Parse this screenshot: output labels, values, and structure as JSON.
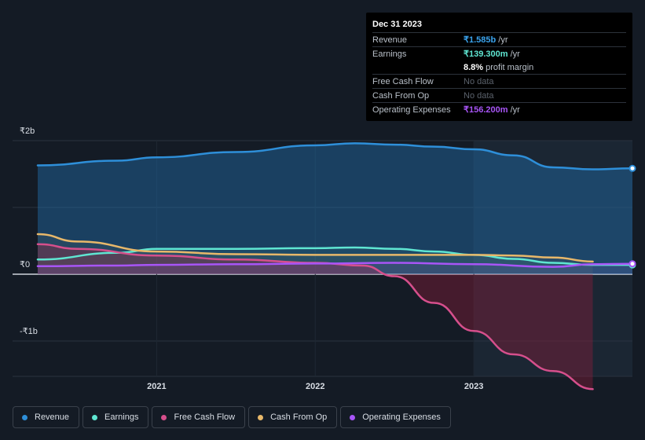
{
  "tooltip": {
    "date": "Dec 31 2023",
    "rows": [
      {
        "label": "Revenue",
        "value": "₹1.585b",
        "unit": " /yr",
        "color": "#3ba4ee"
      },
      {
        "label": "Earnings",
        "value": "₹139.300m",
        "unit": " /yr",
        "color": "#5fe6d2"
      },
      {
        "label": "",
        "value": "8.8%",
        "unit": " profit margin",
        "color": "#ffffff"
      },
      {
        "label": "Free Cash Flow",
        "value": "No data",
        "unit": "",
        "color": "#5b626c"
      },
      {
        "label": "Cash From Op",
        "value": "No data",
        "unit": "",
        "color": "#5b626c"
      },
      {
        "label": "Operating Expenses",
        "value": "₹156.200m",
        "unit": " /yr",
        "color": "#a855f7"
      }
    ]
  },
  "legend": [
    {
      "label": "Revenue",
      "color": "#2e8fd9"
    },
    {
      "label": "Earnings",
      "color": "#5fe6d2"
    },
    {
      "label": "Free Cash Flow",
      "color": "#d64f8c"
    },
    {
      "label": "Cash From Op",
      "color": "#e8b86a"
    },
    {
      "label": "Operating Expenses",
      "color": "#a855f7"
    }
  ],
  "chart_data": {
    "type": "line",
    "y_tick_labels": [
      "₹2b",
      "₹0",
      "-₹1b"
    ],
    "x_tick_labels": [
      "2021",
      "2022",
      "2023"
    ],
    "ylim": [
      -1.0,
      2.0
    ],
    "xlim": [
      2020.25,
      2024.0
    ],
    "grid": true,
    "legend_position": "bottom",
    "series": [
      {
        "name": "Revenue",
        "color": "#2e8fd9",
        "x": [
          2020.25,
          2020.75,
          2021.0,
          2021.5,
          2022.0,
          2022.25,
          2022.5,
          2022.75,
          2023.0,
          2023.25,
          2023.5,
          2023.75,
          2024.0
        ],
        "y": [
          1.63,
          1.7,
          1.75,
          1.83,
          1.93,
          1.96,
          1.94,
          1.91,
          1.87,
          1.78,
          1.6,
          1.57,
          1.585
        ]
      },
      {
        "name": "Earnings",
        "color": "#5fe6d2",
        "x": [
          2020.25,
          2020.75,
          2021.0,
          2021.5,
          2022.0,
          2022.25,
          2022.5,
          2022.75,
          2023.0,
          2023.25,
          2023.5,
          2023.75,
          2024.0
        ],
        "y": [
          0.22,
          0.32,
          0.38,
          0.38,
          0.39,
          0.4,
          0.38,
          0.34,
          0.29,
          0.23,
          0.17,
          0.14,
          0.139
        ]
      },
      {
        "name": "Free Cash Flow",
        "color": "#d64f8c",
        "x": [
          2020.25,
          2020.5,
          2021.0,
          2021.5,
          2022.0,
          2022.3,
          2022.5,
          2022.75,
          2023.0,
          2023.25,
          2023.5,
          2023.75
        ],
        "y": [
          0.45,
          0.38,
          0.28,
          0.22,
          0.17,
          0.13,
          -0.03,
          -0.43,
          -0.85,
          -1.2,
          -1.45,
          -1.72
        ]
      },
      {
        "name": "Cash From Op",
        "color": "#e8b86a",
        "x": [
          2020.25,
          2020.5,
          2021.0,
          2021.5,
          2022.0,
          2022.5,
          2023.0,
          2023.25,
          2023.5,
          2023.75
        ],
        "y": [
          0.6,
          0.49,
          0.34,
          0.3,
          0.29,
          0.29,
          0.29,
          0.28,
          0.25,
          0.19
        ]
      },
      {
        "name": "Operating Expenses",
        "color": "#a855f7",
        "x": [
          2020.25,
          2020.75,
          2021.0,
          2021.5,
          2022.0,
          2022.5,
          2023.0,
          2023.5,
          2023.75,
          2024.0
        ],
        "y": [
          0.12,
          0.13,
          0.14,
          0.15,
          0.16,
          0.17,
          0.15,
          0.11,
          0.15,
          0.156
        ]
      }
    ]
  }
}
